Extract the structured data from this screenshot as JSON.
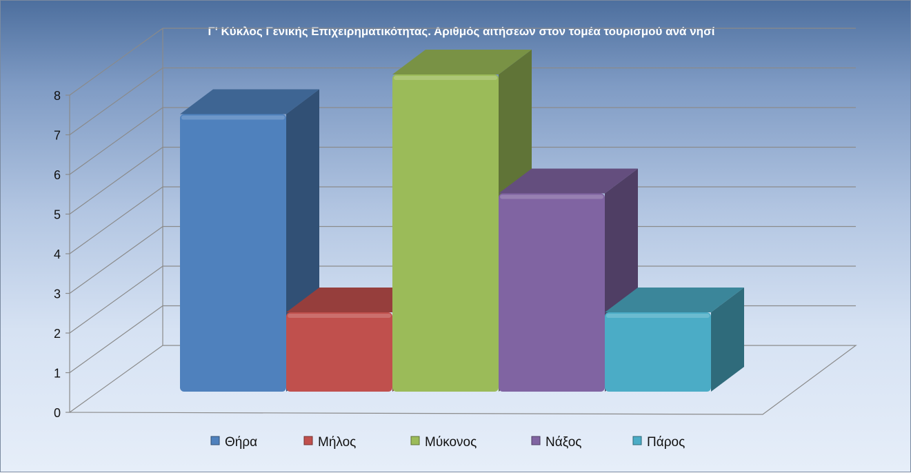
{
  "chart_data": {
    "type": "bar",
    "title": "Γ' Κύκλος Γενικής Επιχειρηματικότητας. Αριθμός αιτήσεων στον τομέα τουρισμού ανά νησί",
    "xlabel": "",
    "ylabel": "",
    "ylim": [
      0,
      8
    ],
    "yticks": [
      "0",
      "1",
      "2",
      "3",
      "4",
      "5",
      "6",
      "7",
      "8"
    ],
    "grid": true,
    "legend_position": "bottom",
    "series": [
      {
        "name": "Θήρα",
        "value": 7,
        "color": "#4f81bd"
      },
      {
        "name": "Μήλος",
        "value": 2,
        "color": "#c0504d"
      },
      {
        "name": "Μύκονος",
        "value": 8,
        "color": "#9bbb59"
      },
      {
        "name": "Νάξος",
        "value": 5,
        "color": "#8064a2"
      },
      {
        "name": "Πάρος",
        "value": 2,
        "color": "#4bacc6"
      }
    ]
  }
}
